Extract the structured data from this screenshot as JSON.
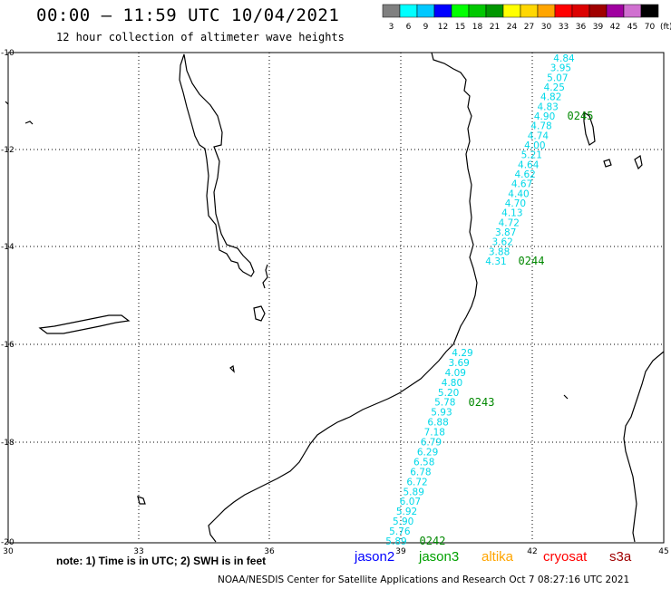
{
  "header": {
    "title": "00:00 – 11:59 UTC 10/04/2021",
    "subtitle": "12 hour collection of altimeter wave heights"
  },
  "legend": {
    "unit": "(ft)",
    "swatches": [
      {
        "color": "#808080",
        "label": "3"
      },
      {
        "color": "#00ffff",
        "label": "6"
      },
      {
        "color": "#00c8ff",
        "label": "9"
      },
      {
        "color": "#0000ff",
        "label": "12"
      },
      {
        "color": "#00ff00",
        "label": "15"
      },
      {
        "color": "#00c800",
        "label": "18"
      },
      {
        "color": "#009600",
        "label": "21"
      },
      {
        "color": "#ffff00",
        "label": "24"
      },
      {
        "color": "#ffd700",
        "label": "27"
      },
      {
        "color": "#ffa500",
        "label": "30"
      },
      {
        "color": "#ff0000",
        "label": "33"
      },
      {
        "color": "#dc0000",
        "label": "36"
      },
      {
        "color": "#a00000",
        "label": "39"
      },
      {
        "color": "#a000a0",
        "label": "42"
      },
      {
        "color": "#d070d0",
        "label": "45"
      },
      {
        "color": "#000000",
        "label": "70"
      }
    ]
  },
  "axes": {
    "lat_labels": [
      "-10",
      "-12",
      "-14",
      "-16",
      "-18",
      "-20"
    ],
    "lon_labels": [
      "30",
      "33",
      "36",
      "39",
      "42",
      "45"
    ]
  },
  "colors": {
    "swh": "#00d8e8",
    "pass_time": "#008800",
    "coast": "#000000",
    "grid": "#000000"
  },
  "passes": [
    {
      "time": "0245",
      "values": [
        "4.84",
        "3.95",
        "5.07",
        "4.25",
        "4.82",
        "4.83",
        "4.90",
        "4.78",
        "4.74",
        "4.00",
        "5.21",
        "4.64",
        "4.62",
        "4.67",
        "4.40",
        "4.70",
        "4.13",
        "4.72",
        "3.87",
        "3.62",
        "3.88",
        "4.31"
      ]
    },
    {
      "time": "0244",
      "values": []
    },
    {
      "time": "0243",
      "values": [
        "4.29",
        "3.69",
        "4.09",
        "4.80",
        "5.20",
        "5.78",
        "5.93",
        "6.88",
        "7.18",
        "6.79",
        "6.29",
        "6.58",
        "6.78",
        "6.72",
        "5.89",
        "6.07",
        "5.92",
        "5.90",
        "5.76",
        "5.89"
      ]
    },
    {
      "time": "0242",
      "values": []
    }
  ],
  "footer": {
    "note": "note:  1) Time is in UTC;  2) SWH is in feet",
    "satellites": [
      {
        "name": "jason2",
        "color": "#0000ff"
      },
      {
        "name": "jason3",
        "color": "#00a000"
      },
      {
        "name": "altika",
        "color": "#ffa500"
      },
      {
        "name": "cryosat",
        "color": "#ff0000"
      },
      {
        "name": "s3a",
        "color": "#a00000"
      }
    ],
    "credit": "NOAA/NESDIS Center for Satellite Applications and Research    Oct  7 08:27:16 UTC 2021"
  }
}
